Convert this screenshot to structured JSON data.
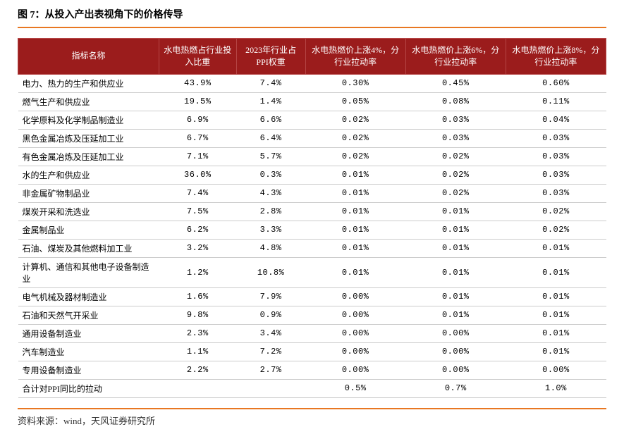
{
  "title": "图 7：从投入产出表视角下的价格传导",
  "source": "资料来源：wind，天风证券研究所",
  "table": {
    "type": "table",
    "header_bg": "#9b1c1c",
    "header_text_color": "#ffffff",
    "border_color": "#cccccc",
    "rule_color": "#e87722",
    "columns": [
      "指标名称",
      "水电热燃占行业投入比重",
      "2023年行业占PPI权重",
      "水电热燃价上涨4%，分行业拉动率",
      "水电热燃价上涨6%，分行业拉动率",
      "水电热燃价上涨8%，分行业拉动率"
    ],
    "rows": [
      [
        "电力、热力的生产和供应业",
        "43.9%",
        "7.4%",
        "0.30%",
        "0.45%",
        "0.60%"
      ],
      [
        "燃气生产和供应业",
        "19.5%",
        "1.4%",
        "0.05%",
        "0.08%",
        "0.11%"
      ],
      [
        "化学原料及化学制品制造业",
        "6.9%",
        "6.6%",
        "0.02%",
        "0.03%",
        "0.04%"
      ],
      [
        "黑色金属冶炼及压延加工业",
        "6.7%",
        "6.4%",
        "0.02%",
        "0.03%",
        "0.03%"
      ],
      [
        "有色金属冶炼及压延加工业",
        "7.1%",
        "5.7%",
        "0.02%",
        "0.02%",
        "0.03%"
      ],
      [
        "水的生产和供应业",
        "36.0%",
        "0.3%",
        "0.01%",
        "0.02%",
        "0.03%"
      ],
      [
        "非金属矿物制品业",
        "7.4%",
        "4.3%",
        "0.01%",
        "0.02%",
        "0.03%"
      ],
      [
        "煤炭开采和洗选业",
        "7.5%",
        "2.8%",
        "0.01%",
        "0.01%",
        "0.02%"
      ],
      [
        "金属制品业",
        "6.2%",
        "3.3%",
        "0.01%",
        "0.01%",
        "0.02%"
      ],
      [
        "石油、煤炭及其他燃料加工业",
        "3.2%",
        "4.8%",
        "0.01%",
        "0.01%",
        "0.01%"
      ],
      [
        "计算机、通信和其他电子设备制造业",
        "1.2%",
        "10.8%",
        "0.01%",
        "0.01%",
        "0.01%"
      ],
      [
        "电气机械及器材制造业",
        "1.6%",
        "7.9%",
        "0.00%",
        "0.01%",
        "0.01%"
      ],
      [
        "石油和天然气开采业",
        "9.8%",
        "0.9%",
        "0.00%",
        "0.01%",
        "0.01%"
      ],
      [
        "通用设备制造业",
        "2.3%",
        "3.4%",
        "0.00%",
        "0.00%",
        "0.01%"
      ],
      [
        "汽车制造业",
        "1.1%",
        "7.2%",
        "0.00%",
        "0.00%",
        "0.01%"
      ],
      [
        "专用设备制造业",
        "2.2%",
        "2.7%",
        "0.00%",
        "0.00%",
        "0.00%"
      ],
      [
        "合计对PPI同比的拉动",
        "",
        "",
        "0.5%",
        "0.7%",
        "1.0%"
      ]
    ]
  }
}
